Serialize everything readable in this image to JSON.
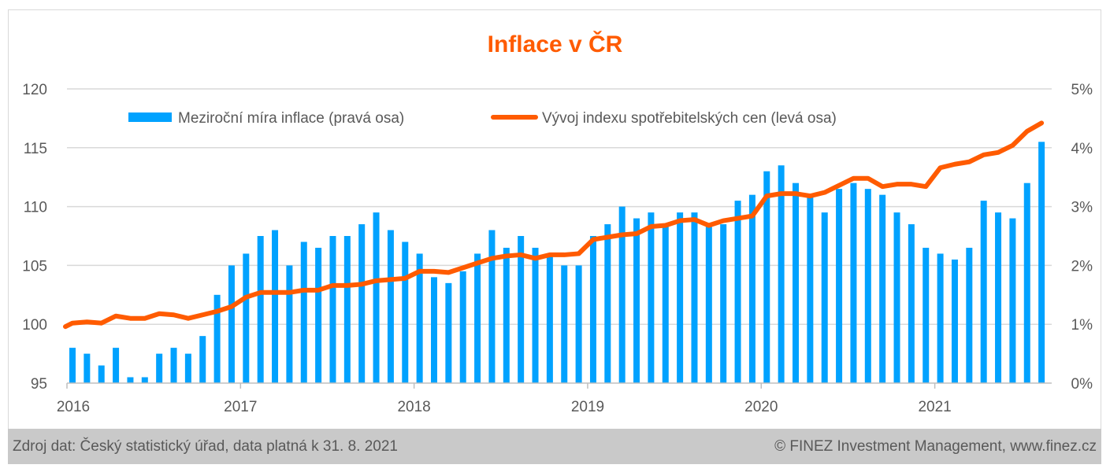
{
  "chart_data": {
    "type": "bar+line",
    "title": "Inflace v ČR",
    "x_start": "2016-01",
    "x_tick_labels": [
      "2016",
      "2017",
      "2018",
      "2019",
      "2020",
      "2021"
    ],
    "left_axis": {
      "ticks": [
        "95",
        "100",
        "105",
        "110",
        "115",
        "120"
      ],
      "range": [
        95,
        120
      ]
    },
    "right_axis": {
      "ticks": [
        "0%",
        "1%",
        "2%",
        "3%",
        "4%",
        "5%"
      ],
      "range": [
        0,
        5
      ]
    },
    "grid": true,
    "legend_position": "top",
    "series": [
      {
        "name": "Meziroční míra inflace (pravá osa)",
        "type": "bar",
        "axis": "right",
        "color": "#00a2ff",
        "values": [
          0.6,
          0.5,
          0.3,
          0.6,
          0.1,
          0.1,
          0.5,
          0.6,
          0.5,
          0.8,
          1.5,
          2.0,
          2.2,
          2.5,
          2.6,
          2.0,
          2.4,
          2.3,
          2.5,
          2.5,
          2.7,
          2.9,
          2.6,
          2.4,
          2.2,
          1.8,
          1.7,
          1.9,
          2.2,
          2.6,
          2.3,
          2.5,
          2.3,
          2.2,
          2.0,
          2.0,
          2.5,
          2.7,
          3.0,
          2.8,
          2.9,
          2.7,
          2.9,
          2.9,
          2.7,
          2.7,
          3.1,
          3.2,
          3.6,
          3.7,
          3.4,
          3.2,
          2.9,
          3.3,
          3.4,
          3.3,
          3.2,
          2.9,
          2.7,
          2.3,
          2.2,
          2.1,
          2.3,
          3.1,
          2.9,
          2.8,
          3.4,
          4.1
        ]
      },
      {
        "name": "Vývoj indexu spotřebitelských cen (levá osa)",
        "type": "line",
        "axis": "left",
        "color": "#ff5b00",
        "values": [
          100.1,
          100.2,
          100.1,
          100.7,
          100.5,
          100.5,
          100.9,
          100.8,
          100.5,
          100.8,
          101.1,
          101.5,
          102.3,
          102.7,
          102.7,
          102.7,
          102.9,
          102.9,
          103.3,
          103.3,
          103.4,
          103.7,
          103.8,
          103.9,
          104.5,
          104.5,
          104.4,
          104.8,
          105.2,
          105.6,
          105.8,
          105.9,
          105.6,
          105.9,
          105.9,
          106.0,
          107.2,
          107.4,
          107.6,
          107.7,
          108.3,
          108.4,
          108.8,
          108.9,
          108.4,
          108.8,
          109.0,
          109.2,
          110.9,
          111.1,
          111.1,
          110.9,
          111.2,
          111.8,
          112.4,
          112.4,
          111.7,
          111.9,
          111.9,
          111.7,
          113.3,
          113.6,
          113.8,
          114.4,
          114.6,
          115.2,
          116.4,
          117.1
        ]
      }
    ]
  },
  "footer": {
    "source": "Zdroj dat: Český statistický úřad, data platná k 31. 8. 2021",
    "copyright": "© FINEZ Investment Management, www.finez.cz"
  }
}
